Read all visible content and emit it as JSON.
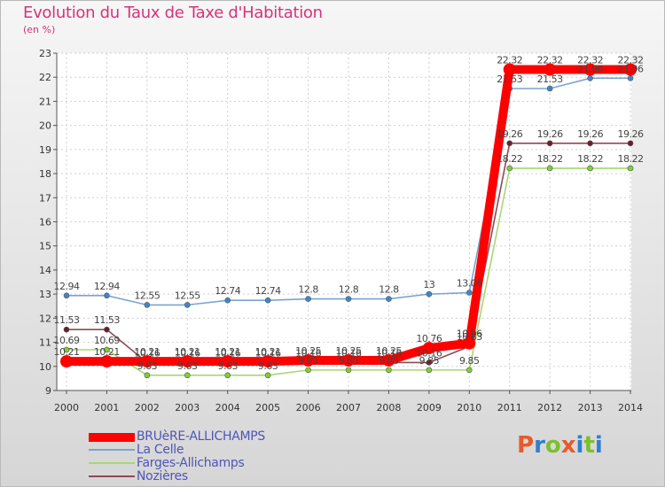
{
  "title": "Evolution du Taux de Taxe d'Habitation",
  "unit": "(en %)",
  "brand": {
    "letters": [
      "P",
      "r",
      "o",
      "x",
      "i",
      "t",
      "i"
    ],
    "colors": [
      "#e85a2a",
      "#2f7fd0",
      "#7cbf2b",
      "#e85a2a",
      "#2f7fd0",
      "#7cbf2b",
      "#2f7fd0"
    ]
  },
  "chart_data": {
    "type": "line",
    "title": "Evolution du Taux de Taxe d'Habitation",
    "ylabel": "(en %)",
    "xlabel": "",
    "x": [
      "2000",
      "2001",
      "2002",
      "2003",
      "2004",
      "2005",
      "2006",
      "2007",
      "2008",
      "2009",
      "2010",
      "2011",
      "2012",
      "2013",
      "2014"
    ],
    "ylim": [
      9,
      23
    ],
    "yticks": [
      9,
      10,
      11,
      12,
      13,
      14,
      15,
      16,
      17,
      18,
      19,
      20,
      21,
      22,
      23
    ],
    "legend_position": "bottom-left",
    "series": [
      {
        "name": "BRUèRE-ALLICHAMPS",
        "color": "#ff0000",
        "marker": "#ff0000",
        "values": [
          10.21,
          10.21,
          10.21,
          10.21,
          10.21,
          10.21,
          10.25,
          10.25,
          10.25,
          10.76,
          10.96,
          22.32,
          22.32,
          22.32,
          22.32
        ],
        "labels": [
          "10.21",
          "10.21",
          "10.21",
          "10.21",
          "10.21",
          "10.21",
          "10.25",
          "10.25",
          "10.25",
          "10.76",
          "10.96",
          "22.32",
          "22.32",
          "22.32",
          "22.32"
        ]
      },
      {
        "name": "La Celle",
        "color": "#7ba4cf",
        "marker": "#3f86c9",
        "values": [
          12.94,
          12.94,
          12.55,
          12.55,
          12.74,
          12.74,
          12.8,
          12.8,
          12.8,
          13,
          13.06,
          21.53,
          21.53,
          21.96,
          21.96
        ],
        "labels": [
          "12.94",
          "12.94",
          "12.55",
          "12.55",
          "12.74",
          "12.74",
          "12.8",
          "12.8",
          "12.8",
          "13",
          "13.06",
          "21.53",
          "21.53",
          "21.96",
          "21.96"
        ]
      },
      {
        "name": "Farges-Allichamps",
        "color": "#a6d873",
        "marker": "#7fcf3a",
        "values": [
          10.69,
          10.69,
          9.63,
          9.63,
          9.63,
          9.63,
          9.85,
          9.85,
          9.85,
          9.85,
          9.85,
          18.22,
          18.22,
          18.22,
          18.22
        ],
        "labels": [
          "10.69",
          "10.69",
          "9.63",
          "9.63",
          "9.63",
          "9.63",
          "9.85",
          "9.85",
          "9.85",
          "9.85",
          "9.85",
          "18.22",
          "18.22",
          "18.22",
          "18.22"
        ]
      },
      {
        "name": "Nozières",
        "color": "#8a4a55",
        "marker": "#6b1e2c",
        "values": [
          11.53,
          11.53,
          10.16,
          10.16,
          10.16,
          10.16,
          10.16,
          10.16,
          10.16,
          10.16,
          10.83,
          19.26,
          19.26,
          19.26,
          19.26
        ],
        "labels": [
          "11.53",
          "11.53",
          "10.16",
          "10.16",
          "10.16",
          "10.16",
          "10.16",
          "10.16",
          "10.16",
          "10.16",
          "10.83",
          "19.26",
          "19.26",
          "19.26",
          "19.26"
        ]
      }
    ]
  }
}
